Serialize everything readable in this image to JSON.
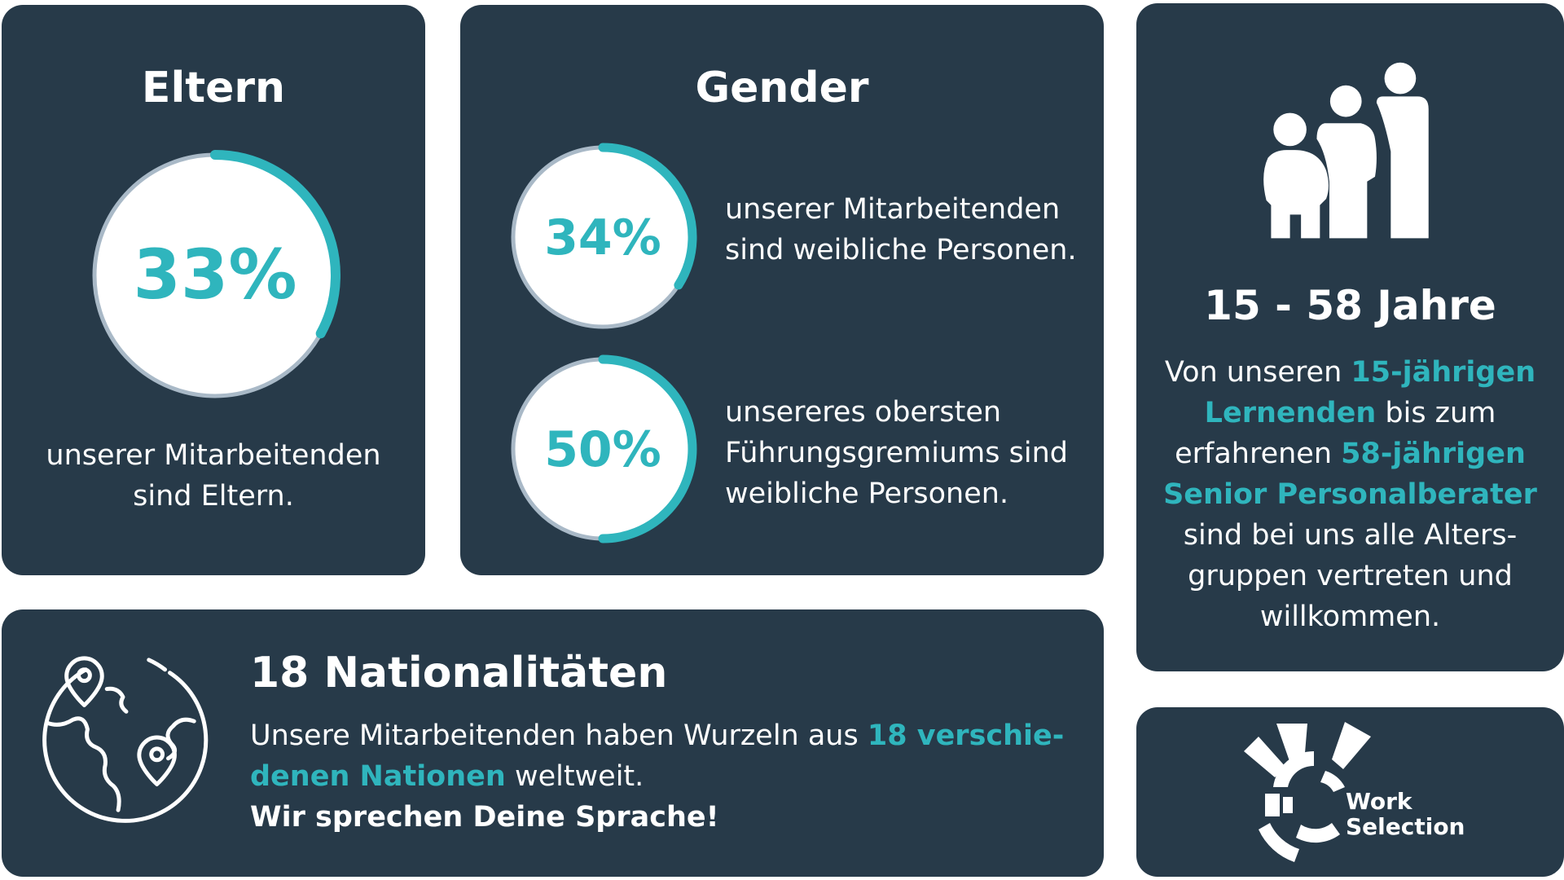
{
  "colors": {
    "card": "#273a49",
    "accent": "#2fb5bd",
    "ring_track": "#a9b9c7",
    "text": "#ffffff"
  },
  "eltern": {
    "title": "Eltern",
    "percent_label": "33%",
    "percent_value": 33,
    "desc_line1": "unserer Mitarbeitenden",
    "desc_line2": "sind Eltern."
  },
  "gender": {
    "title": "Gender",
    "stat1": {
      "percent_label": "34%",
      "percent_value": 34,
      "line1": "unserer Mitarbeitenden",
      "line2": "sind weibliche Personen."
    },
    "stat2": {
      "percent_label": "50%",
      "percent_value": 50,
      "line1": "unsereres obersten",
      "line2": "Führungsgremiums sind",
      "line3": "weibliche Personen."
    }
  },
  "ages": {
    "icon": "family-icon",
    "title": "15 - 58 Jahre",
    "p1": "Von unseren ",
    "h1": "15-jährigen",
    "h2": "Lernenden",
    "p2": " bis zum",
    "p3": "erfahrenen ",
    "h3": "58-jährigen",
    "h4": "Senior Personalberater",
    "p4": "sind bei uns alle Alters-",
    "p5": "gruppen vertreten und",
    "p6": "willkommen."
  },
  "nations": {
    "icon": "globe-pins-icon",
    "title": "18 Nationalitäten",
    "p1": "Unsere Mitarbeitenden haben Wurzeln aus ",
    "h1": "18 verschie-",
    "h2": "denen Nationen",
    "p2": " weltweit.",
    "bold_line": "Wir sprechen Deine Sprache!"
  },
  "logo": {
    "icon": "work-selection-logo-icon",
    "line1": "Work",
    "line2": "Selection"
  }
}
